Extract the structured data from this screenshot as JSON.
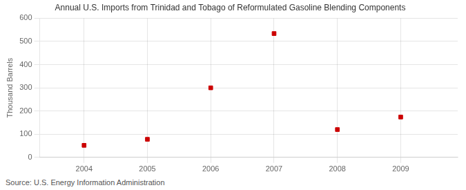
{
  "chart_data": {
    "type": "scatter",
    "title": "Annual U.S. Imports from Trinidad and Tobago of Reformulated Gasoline Blending Components",
    "y_label": "Thousand Barrels",
    "annotations": [
      "Source: U.S. Energy Information Administration"
    ],
    "x": [
      2004,
      2005,
      2006,
      2007,
      2008,
      2009
    ],
    "values": [
      52,
      78,
      300,
      534,
      120,
      174
    ],
    "color": "#cc0000",
    "marker": "square",
    "xlim": [
      2003.3,
      2009.9
    ],
    "xticks": [
      2004,
      2005,
      2006,
      2007,
      2008,
      2009
    ],
    "ylim": [
      0,
      600
    ],
    "yticks": [
      0,
      100,
      200,
      300,
      400,
      500,
      600
    ],
    "grid": true
  }
}
